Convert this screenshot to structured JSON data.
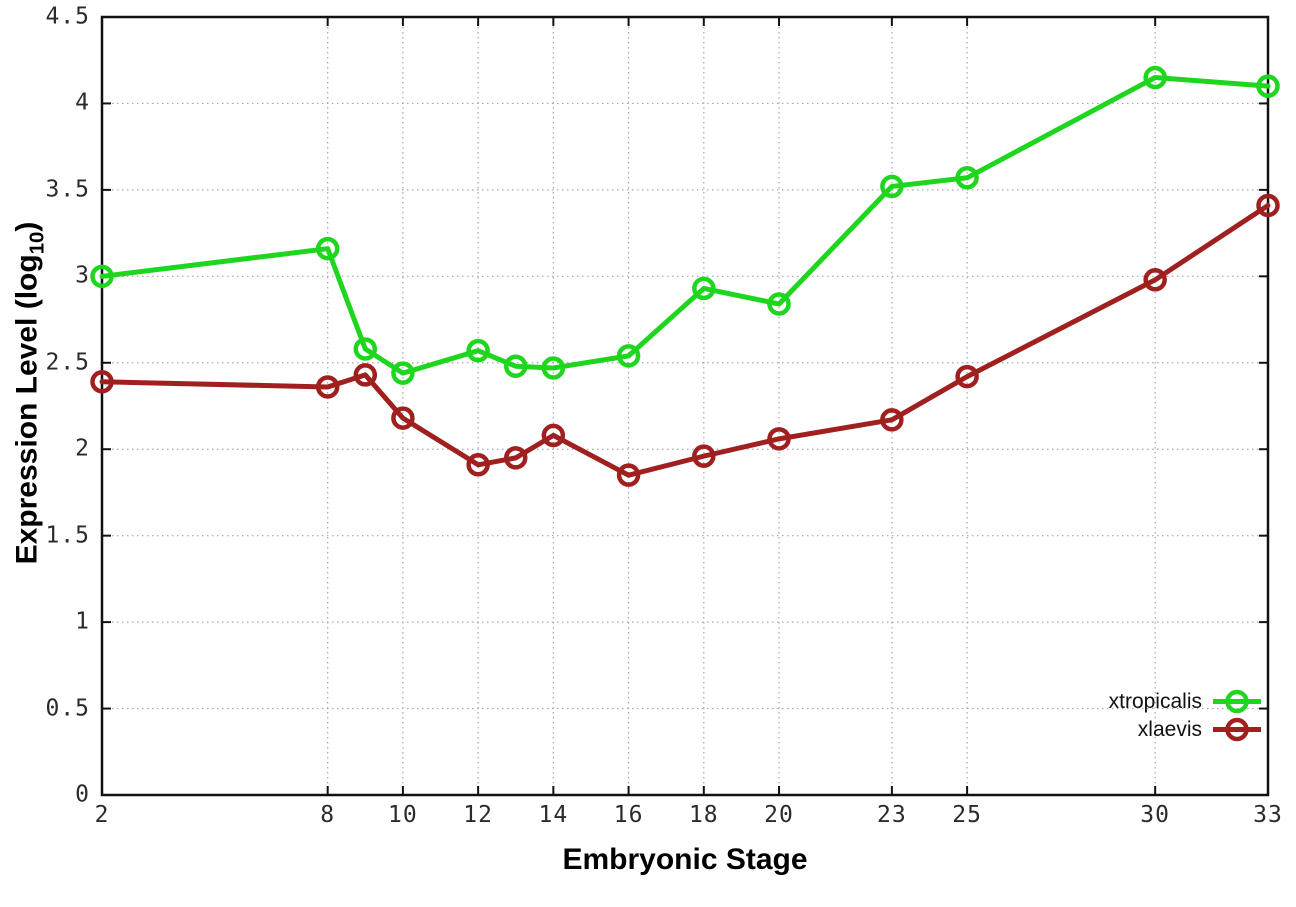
{
  "chart_data": {
    "type": "line",
    "title": "",
    "xlabel": "Embryonic Stage",
    "ylabel": "Expression Level (log10)",
    "ylabel_parts": {
      "pre": "Expression Level (log",
      "sub": "10",
      "post": ")"
    },
    "xlim": [
      2,
      33
    ],
    "ylim": [
      0,
      4.5
    ],
    "grid": true,
    "legend_position": "bottom-right",
    "x": [
      2,
      8,
      9,
      10,
      12,
      13,
      14,
      16,
      18,
      20,
      23,
      25,
      30,
      33
    ],
    "x_ticks": [
      2,
      8,
      10,
      12,
      14,
      16,
      18,
      20,
      23,
      25,
      30,
      33
    ],
    "x_tick_labels": [
      "2",
      "8",
      "10",
      "12",
      "14",
      "16",
      "18",
      "20",
      "23",
      "25",
      "30",
      "33"
    ],
    "y_ticks": [
      0,
      0.5,
      1,
      1.5,
      2,
      2.5,
      3,
      3.5,
      4,
      4.5
    ],
    "y_tick_labels": [
      "0",
      "0.5",
      "1",
      "1.5",
      "2",
      "2.5",
      "3",
      "3.5",
      "4",
      "4.5"
    ],
    "series": [
      {
        "name": "xtropicalis",
        "color": "#1fd61f",
        "marker": "open-circle",
        "values": [
          3.0,
          3.16,
          2.58,
          2.44,
          2.57,
          2.48,
          2.47,
          2.54,
          2.93,
          2.84,
          3.52,
          3.57,
          4.15,
          4.1
        ]
      },
      {
        "name": "xlaevis",
        "color": "#a02020",
        "marker": "open-circle",
        "values": [
          2.39,
          2.36,
          2.43,
          2.18,
          1.91,
          1.95,
          2.08,
          1.85,
          1.96,
          2.06,
          2.17,
          2.42,
          2.98,
          3.41
        ]
      }
    ],
    "colors": {
      "border": "#111111",
      "grid": "#a8a8a8",
      "tick": "#111111",
      "background": "#ffffff"
    }
  }
}
